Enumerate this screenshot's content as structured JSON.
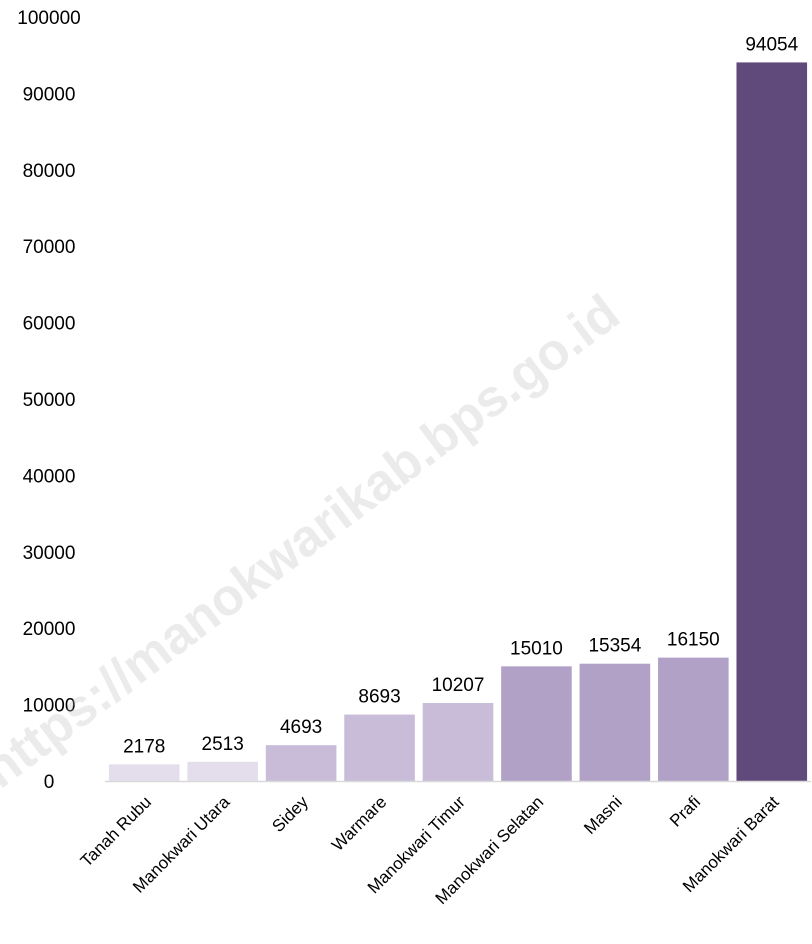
{
  "watermark": "https://manokwarikab.bps.go.id",
  "chart_data": {
    "type": "bar",
    "title": "",
    "xlabel": "",
    "ylabel": "",
    "ylim": [
      0,
      100000
    ],
    "yticks": [
      0,
      10000,
      20000,
      30000,
      40000,
      50000,
      60000,
      70000,
      80000,
      90000,
      100000
    ],
    "grid": false,
    "legend": "none",
    "categories": [
      "Tanah Rubu",
      "Manokwari Utara",
      "Sidey",
      "Warmare",
      "Manokwari Timur",
      "Manokwari Selatan",
      "Masni",
      "Prafi",
      "Manokwari Barat"
    ],
    "values": [
      2178,
      2513,
      4693,
      8693,
      10207,
      15010,
      15354,
      16150,
      94054
    ],
    "colors": [
      "#e4deec",
      "#e4deec",
      "#c8bcd9",
      "#c8bcd9",
      "#c8bcd9",
      "#b1a1c7",
      "#b1a1c7",
      "#b1a1c7",
      "#604a7b"
    ]
  }
}
